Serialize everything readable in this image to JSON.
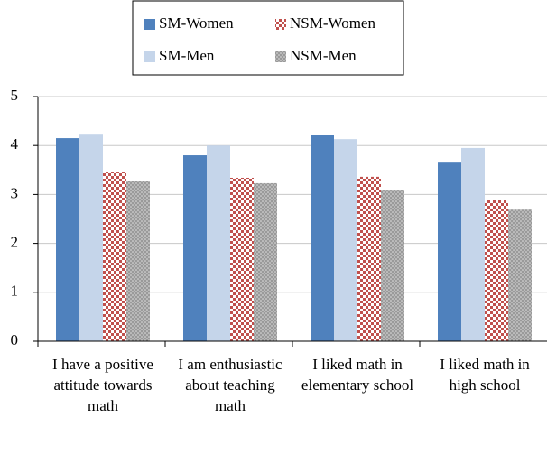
{
  "chart_data": {
    "type": "bar",
    "categories": [
      "I have a positive attitude towards math",
      "I am enthusiastic about teaching math",
      "I liked math in elementary school",
      "I liked math in high school"
    ],
    "series": [
      {
        "name": "SM-Women",
        "color": "#4f81bd",
        "values": [
          4.15,
          3.8,
          4.21,
          3.65
        ]
      },
      {
        "name": "SM-Men",
        "color": "#c5d5ea",
        "values": [
          4.24,
          4.0,
          4.13,
          3.95
        ]
      },
      {
        "name": "NSM-Women",
        "color": "#c0504d",
        "pattern": "checker",
        "values": [
          3.45,
          3.34,
          3.36,
          2.88
        ]
      },
      {
        "name": "NSM-Men",
        "color": "#9a9a9a",
        "pattern": "dots",
        "values": [
          3.27,
          3.23,
          3.08,
          2.69
        ]
      }
    ],
    "ylim": [
      0,
      5
    ],
    "yticks": [
      0,
      1,
      2,
      3,
      4,
      5
    ],
    "grid": true
  }
}
